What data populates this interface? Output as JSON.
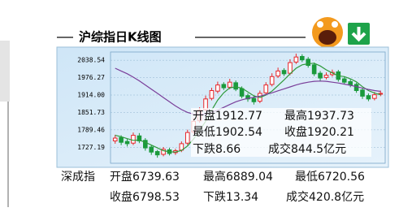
{
  "chart_data": {
    "type": "candlestick",
    "title": "沪综指日K线图",
    "open": [
      1750,
      1762,
      1748,
      1742,
      1768,
      1752,
      1728,
      1712,
      1702,
      1718,
      1708,
      1717,
      1742,
      1782,
      1822,
      1862,
      1902,
      1928,
      1952,
      1942,
      1958,
      1937,
      1912,
      1902,
      1892,
      1922,
      1952,
      1982,
      2002,
      1992,
      2032,
      2052,
      2042,
      2022,
      1992,
      1977,
      1987,
      1997,
      1972,
      1962,
      1952,
      1932,
      1912,
      1902,
      1917
    ],
    "high": [
      1772,
      1770,
      1758,
      1780,
      1778,
      1760,
      1735,
      1718,
      1728,
      1725,
      1722,
      1748,
      1790,
      1832,
      1870,
      1912,
      1940,
      1962,
      1960,
      1972,
      1966,
      1945,
      1920,
      1910,
      1930,
      1960,
      1992,
      2012,
      2010,
      2042,
      2062,
      2060,
      2050,
      2030,
      2000,
      1995,
      2005,
      2004,
      1980,
      1970,
      1958,
      1940,
      1920,
      1925,
      1930
    ],
    "low": [
      1740,
      1735,
      1730,
      1735,
      1742,
      1715,
      1700,
      1690,
      1695,
      1698,
      1700,
      1710,
      1735,
      1775,
      1815,
      1855,
      1895,
      1920,
      1932,
      1935,
      1928,
      1902,
      1890,
      1880,
      1885,
      1915,
      1945,
      1975,
      1982,
      1985,
      2025,
      2032,
      2012,
      1982,
      1965,
      1970,
      1980,
      1962,
      1952,
      1942,
      1922,
      1900,
      1892,
      1895,
      1910
    ],
    "close": [
      1760,
      1745,
      1740,
      1770,
      1750,
      1725,
      1710,
      1700,
      1720,
      1705,
      1715,
      1740,
      1780,
      1820,
      1860,
      1900,
      1930,
      1950,
      1940,
      1960,
      1935,
      1910,
      1900,
      1890,
      1920,
      1950,
      1980,
      2000,
      1990,
      2030,
      2050,
      2040,
      2020,
      1990,
      1975,
      1985,
      1995,
      1970,
      1960,
      1950,
      1930,
      1910,
      1900,
      1915,
      1920
    ],
    "up_color": "#e8262a",
    "down_color": "#1a9a3c",
    "series": [
      {
        "color": "#2e9a3a",
        "values": [
          1770,
          1765,
          1758,
          1752,
          1753,
          1745,
          1735,
          1725,
          1715,
          1711,
          1710,
          1716,
          1732,
          1757,
          1787,
          1820,
          1860,
          1896,
          1922,
          1940,
          1943,
          1939,
          1925,
          1911,
          1905,
          1914,
          1928,
          1948,
          1968,
          1990,
          2010,
          2022,
          2026,
          2028,
          2018,
          2004,
          1993,
          1983,
          1980,
          1972,
          1961,
          1944,
          1930,
          1921,
          1915
        ]
      },
      {
        "color": "#7a3f9a",
        "values": [
          2010,
          2000,
          1990,
          1978,
          1965,
          1950,
          1935,
          1920,
          1905,
          1890,
          1875,
          1862,
          1852,
          1846,
          1844,
          1846,
          1852,
          1860,
          1870,
          1880,
          1890,
          1897,
          1902,
          1906,
          1910,
          1916,
          1922,
          1929,
          1936,
          1943,
          1950,
          1956,
          1960,
          1963,
          1964,
          1963,
          1960,
          1957,
          1953,
          1949,
          1944,
          1939,
          1934,
          1930,
          1927
        ]
      }
    ],
    "ylim": [
      1670,
      2068
    ],
    "yticks": [
      2038.54,
      1976.27,
      {
        "value": 1914,
        "label": "1914.00"
      },
      1851.73,
      1789.46,
      1727.19
    ],
    "grid": true,
    "annotations": [
      "开盘1912.77",
      "最高1937.73",
      "最低1902.54",
      "收盘1920.21",
      "下跌8.66",
      "成交844.5亿元"
    ]
  },
  "index_summary": {
    "name": "深成指",
    "items": [
      "开盘6739.63",
      "最高6889.04",
      "最低6720.56",
      "收盘6798.53",
      "下跌13.34",
      "成交420.8亿元"
    ]
  }
}
